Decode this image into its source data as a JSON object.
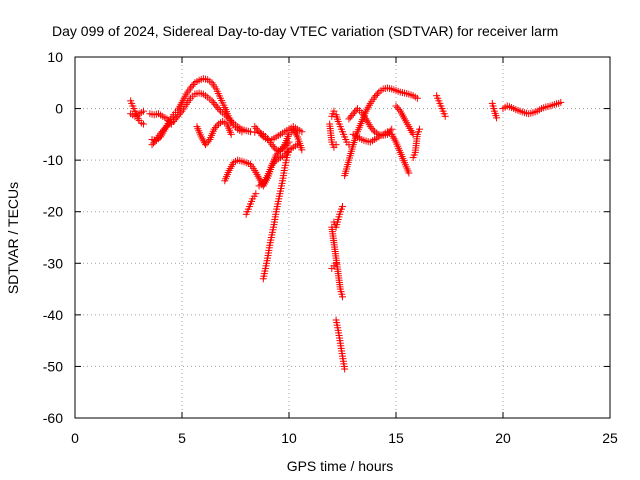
{
  "chart_data": {
    "type": "scatter",
    "title": "Day 099 of 2024, Sidereal Day-to-day VTEC variation (SDTVAR) for receiver larm",
    "xlabel": "GPS time / hours",
    "ylabel": "SDTVAR / TECUs",
    "xlim": [
      0,
      25
    ],
    "ylim": [
      -60,
      10
    ],
    "xticks": [
      0,
      5,
      10,
      15,
      20,
      25
    ],
    "yticks": [
      10,
      0,
      -10,
      -20,
      -30,
      -40,
      -50,
      -60
    ],
    "xtick_labels": [
      "0",
      "5",
      "10",
      "15",
      "20",
      "25"
    ],
    "ytick_labels": [
      "10",
      "0",
      "-10",
      "-20",
      "-30",
      "-40",
      "-50",
      "-60"
    ],
    "grid": true,
    "marker": "+",
    "color": "#ff0000",
    "series": [
      {
        "x": [
          2.6,
          2.7,
          2.8,
          2.9,
          3.0,
          3.1,
          3.2
        ],
        "y": [
          1.5,
          0.5,
          -0.5,
          -1.5,
          -2.3,
          -2.8,
          -3.0
        ]
      },
      {
        "x": [
          2.6,
          2.8,
          3.0,
          3.2
        ],
        "y": [
          -1.0,
          -1.5,
          -1.0,
          -0.5
        ]
      },
      {
        "x": [
          3.6,
          3.8,
          4.0,
          4.2,
          4.4,
          4.6,
          4.8,
          5.0,
          5.2,
          5.4,
          5.6,
          5.8,
          6.0,
          6.2,
          6.4,
          6.6,
          6.8,
          7.0,
          7.2,
          7.4,
          7.6,
          7.8
        ],
        "y": [
          -6.0,
          -6.2,
          -5.5,
          -4.0,
          -2.5,
          -1.2,
          -0.3,
          1.2,
          2.8,
          4.0,
          5.0,
          5.5,
          5.8,
          5.6,
          5.0,
          3.8,
          2.0,
          0.2,
          -1.8,
          -3.2,
          -4.0,
          -4.5
        ]
      },
      {
        "x": [
          3.6,
          3.8,
          4.0,
          4.2,
          4.4,
          4.6,
          4.8,
          5.0,
          5.2,
          5.4,
          5.6,
          5.8,
          6.0,
          6.2,
          6.4,
          6.6,
          6.8,
          7.0,
          7.2,
          7.4,
          7.6,
          7.8,
          8.0,
          8.2,
          8.4,
          8.6,
          8.8,
          9.0,
          9.2,
          9.4,
          9.6,
          9.8,
          10.0,
          10.2
        ],
        "y": [
          -7.0,
          -6.0,
          -4.8,
          -3.8,
          -3.0,
          -2.5,
          -1.5,
          -0.5,
          0.8,
          2.0,
          2.8,
          3.0,
          2.8,
          2.2,
          1.5,
          0.5,
          -0.5,
          -1.2,
          -2.0,
          -2.8,
          -3.5,
          -4.0,
          -4.3,
          -4.5,
          -4.6,
          -4.7,
          -5.0,
          -5.8,
          -7.0,
          -8.0,
          -8.2,
          -7.0,
          -5.0,
          -4.2
        ]
      },
      {
        "x": [
          3.5,
          3.7,
          3.9,
          4.1,
          4.3,
          4.5
        ],
        "y": [
          -1.0,
          -1.2,
          -1.0,
          -1.5,
          -2.0,
          -3.0
        ]
      },
      {
        "x": [
          5.7,
          5.9,
          6.1,
          6.3,
          6.5,
          6.7,
          6.9,
          7.1,
          7.3
        ],
        "y": [
          -3.5,
          -5.5,
          -7.0,
          -6.0,
          -4.0,
          -3.0,
          -2.5,
          -3.0,
          -5.0
        ]
      },
      {
        "x": [
          7.0,
          7.2,
          7.4,
          7.6,
          7.8,
          8.0,
          8.2,
          8.4,
          8.6,
          8.8,
          9.0,
          9.2,
          9.4,
          9.6,
          9.8,
          10.0
        ],
        "y": [
          -14.0,
          -12.0,
          -10.5,
          -10.0,
          -10.2,
          -10.5,
          -10.8,
          -12.0,
          -13.5,
          -15.0,
          -13.5,
          -11.0,
          -9.0,
          -8.0,
          -7.5,
          -6.5
        ]
      },
      {
        "x": [
          8.0,
          8.15,
          8.3,
          8.45
        ],
        "y": [
          -20.5,
          -19.0,
          -17.5,
          -16.5
        ]
      },
      {
        "x": [
          8.6,
          8.8,
          9.0,
          9.2,
          9.4,
          9.6,
          9.8,
          10.0,
          10.2,
          10.4
        ],
        "y": [
          -15.0,
          -14.5,
          -13.0,
          -11.0,
          -10.0,
          -9.5,
          -9.0,
          -8.0,
          -7.5,
          -7.0
        ]
      },
      {
        "x": [
          8.4,
          8.6,
          8.8,
          9.0,
          9.2,
          9.4,
          9.6,
          9.8,
          10.0,
          10.2,
          10.4,
          10.6
        ],
        "y": [
          -3.5,
          -4.5,
          -5.5,
          -6.0,
          -6.0,
          -5.5,
          -5.0,
          -4.5,
          -4.0,
          -3.5,
          -4.0,
          -4.5
        ]
      },
      {
        "x": [
          8.8,
          8.9,
          9.0,
          9.1,
          9.2,
          9.3,
          9.4,
          9.5,
          9.6,
          9.7,
          9.8,
          9.9,
          10.0
        ],
        "y": [
          -33.0,
          -31.0,
          -29.0,
          -26.5,
          -24.5,
          -22.5,
          -20.0,
          -18.0,
          -16.0,
          -14.0,
          -11.5,
          -9.5,
          -8.0
        ]
      },
      {
        "x": [
          10.2,
          10.4,
          10.6
        ],
        "y": [
          -4.0,
          -5.5,
          -8.0
        ]
      },
      {
        "x": [
          11.9,
          12.0,
          12.1,
          12.2
        ],
        "y": [
          -3.0,
          -6.5,
          -7.5,
          -7.0
        ]
      },
      {
        "x": [
          12.0,
          12.1,
          12.2,
          12.3,
          12.4,
          12.5,
          12.6,
          12.7,
          12.8
        ],
        "y": [
          -1.5,
          -0.5,
          -1.2,
          -2.5,
          -3.5,
          -4.5,
          -5.5,
          -6.5,
          -7.0
        ]
      },
      {
        "x": [
          12.0,
          12.1,
          12.2,
          12.3,
          12.4,
          12.5
        ],
        "y": [
          -23.0,
          -26.0,
          -29.0,
          -32.0,
          -35.0,
          -36.5
        ]
      },
      {
        "x": [
          12.1,
          12.2,
          12.3,
          12.4,
          12.5
        ],
        "y": [
          -22.0,
          -23.0,
          -21.5,
          -20.0,
          -19.0
        ]
      },
      {
        "x": [
          12.0,
          12.1,
          12.2
        ],
        "y": [
          -31.0,
          -30.5,
          -30.0
        ]
      },
      {
        "x": [
          12.2,
          12.3,
          12.4,
          12.5,
          12.6
        ],
        "y": [
          -41.0,
          -43.0,
          -45.5,
          -48.0,
          -50.5
        ]
      },
      {
        "x": [
          12.6,
          12.8,
          13.0,
          13.2,
          13.4,
          13.6,
          13.8,
          14.0,
          14.2,
          14.4,
          14.6,
          14.8,
          15.0,
          15.2,
          15.4,
          15.6,
          15.8,
          16.0
        ],
        "y": [
          -13.0,
          -10.0,
          -7.0,
          -4.5,
          -2.5,
          -0.5,
          1.0,
          2.2,
          3.2,
          3.8,
          4.0,
          3.8,
          3.5,
          3.2,
          3.0,
          2.8,
          2.5,
          2.0
        ]
      },
      {
        "x": [
          12.8,
          13.0,
          13.2,
          13.4,
          13.6,
          13.8,
          14.0,
          14.2,
          14.4,
          14.6,
          14.8
        ],
        "y": [
          -2.0,
          -1.0,
          0.0,
          -0.8,
          -2.0,
          -3.5,
          -4.5,
          -5.0,
          -5.2,
          -5.0,
          -4.0
        ]
      },
      {
        "x": [
          13.0,
          13.2,
          13.4,
          13.6,
          13.8,
          14.0,
          14.2,
          14.4,
          14.6,
          14.8,
          15.0,
          15.2,
          15.4,
          15.6
        ],
        "y": [
          -5.0,
          -5.5,
          -6.0,
          -6.3,
          -6.5,
          -6.0,
          -5.5,
          -5.0,
          -4.5,
          -5.0,
          -6.5,
          -8.5,
          -10.5,
          -12.5
        ]
      },
      {
        "x": [
          15.0,
          15.2,
          15.4,
          15.6,
          15.8
        ],
        "y": [
          0.5,
          -0.5,
          -2.0,
          -3.5,
          -5.0
        ]
      },
      {
        "x": [
          15.8,
          15.9,
          16.0,
          16.1
        ],
        "y": [
          -9.5,
          -8.5,
          -5.0,
          -4.0
        ]
      },
      {
        "x": [
          16.9,
          17.0,
          17.1,
          17.2,
          17.3
        ],
        "y": [
          2.5,
          1.5,
          0.5,
          -0.5,
          -1.5
        ]
      },
      {
        "x": [
          19.5,
          19.6,
          19.7
        ],
        "y": [
          1.0,
          -0.5,
          -1.8
        ]
      },
      {
        "x": [
          20.0,
          20.2,
          20.4,
          20.6,
          20.8,
          21.0,
          21.2,
          21.4,
          21.6,
          21.8,
          22.0,
          22.2,
          22.4,
          22.6,
          22.7
        ],
        "y": [
          0.0,
          0.5,
          0.2,
          -0.2,
          -0.5,
          -0.8,
          -1.0,
          -0.8,
          -0.5,
          0.0,
          0.3,
          0.5,
          0.8,
          1.0,
          1.2
        ]
      }
    ]
  }
}
